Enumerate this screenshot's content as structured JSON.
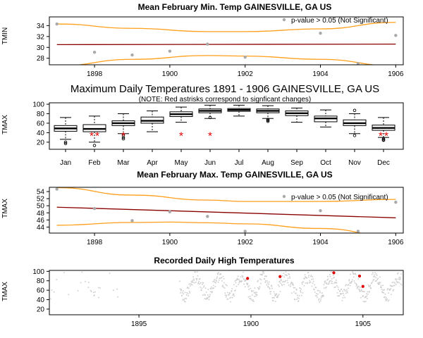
{
  "colors": {
    "trend": "#8b0000",
    "ci": "#ff9f1a",
    "points": "#a9a9a9",
    "scatter": "#cccccc",
    "highlight": "#e00000"
  },
  "chart_data": [
    {
      "id": "min-feb",
      "type": "scatter",
      "title": "Mean February Min. Temp GAINESVILLE, GA US",
      "xlabel": "",
      "ylabel": "TMIN",
      "xlim": [
        1896.8,
        1906.2
      ],
      "ylim": [
        26.8,
        35.6
      ],
      "xticks": [
        1898,
        1900,
        1902,
        1904,
        1906
      ],
      "yticks": [
        28,
        30,
        32,
        34
      ],
      "legend_text": "p-value > 0.05 (Not Significant)",
      "points": [
        [
          1897,
          34.3
        ],
        [
          1898,
          29.1
        ],
        [
          1899,
          28.6
        ],
        [
          1900,
          29.3
        ],
        [
          1901,
          30.6
        ],
        [
          1902,
          28.2
        ],
        [
          1904,
          32.6
        ],
        [
          1905,
          27.0
        ],
        [
          1906,
          32.2
        ]
      ],
      "trend": [
        [
          1897,
          30.5
        ],
        [
          1906,
          30.6
        ]
      ],
      "ci_upper": [
        [
          1897,
          34.3
        ],
        [
          1899,
          33.5
        ],
        [
          1901,
          32.9
        ],
        [
          1902,
          32.9
        ],
        [
          1904,
          33.4
        ],
        [
          1906,
          34.6
        ]
      ],
      "ci_lower": [
        [
          1897,
          26.6
        ],
        [
          1899,
          27.8
        ],
        [
          1901,
          28.5
        ],
        [
          1902,
          28.4
        ],
        [
          1904,
          27.8
        ],
        [
          1906,
          26.6
        ]
      ]
    },
    {
      "id": "monthly-box",
      "type": "box",
      "title": "Maximum Daily Temperatures 1891 - 1906 GAINESVILLE, GA US",
      "subtitle": "(NOTE: Red astrisks correspond to signficant changes)",
      "xlabel": "",
      "ylabel": "TMAX",
      "ylim": [
        5,
        103
      ],
      "yticks": [
        20,
        40,
        60,
        80,
        100
      ],
      "categories": [
        "Jan",
        "Feb",
        "Mar",
        "Apr",
        "May",
        "Jun",
        "Jul",
        "Aug",
        "Sep",
        "Oct",
        "Nov",
        "Dec"
      ],
      "boxes": [
        {
          "whisker_low": 26,
          "q1": 43,
          "median": 49,
          "q3": 55,
          "whisker_high": 72,
          "outliers": [
            20,
            17
          ]
        },
        {
          "whisker_low": 20,
          "q1": 42,
          "median": 48,
          "q3": 57,
          "whisker_high": 75,
          "outliers": [
            13
          ]
        },
        {
          "whisker_low": 38,
          "q1": 55,
          "median": 60,
          "q3": 65,
          "whisker_high": 80,
          "outliers": [
            35,
            30,
            27
          ]
        },
        {
          "whisker_low": 42,
          "q1": 60,
          "median": 65,
          "q3": 73,
          "whisker_high": 86,
          "outliers": []
        },
        {
          "whisker_low": 62,
          "q1": 74,
          "median": 79,
          "q3": 84,
          "whisker_high": 94,
          "outliers": []
        },
        {
          "whisker_low": 70,
          "q1": 82,
          "median": 86,
          "q3": 90,
          "whisker_high": 98,
          "outliers": [
            72
          ]
        },
        {
          "whisker_low": 75,
          "q1": 85,
          "median": 88,
          "q3": 91,
          "whisker_high": 98,
          "outliers": []
        },
        {
          "whisker_low": 70,
          "q1": 82,
          "median": 86,
          "q3": 90,
          "whisker_high": 97,
          "outliers": [
            68,
            66,
            64
          ]
        },
        {
          "whisker_low": 62,
          "q1": 76,
          "median": 81,
          "q3": 86,
          "whisker_high": 92,
          "outliers": []
        },
        {
          "whisker_low": 52,
          "q1": 63,
          "median": 70,
          "q3": 75,
          "whisker_high": 88,
          "outliers": []
        },
        {
          "whisker_low": 38,
          "q1": 55,
          "median": 60,
          "q3": 67,
          "whisker_high": 80,
          "outliers": [
            87,
            34
          ]
        },
        {
          "whisker_low": 30,
          "q1": 45,
          "median": 50,
          "q3": 56,
          "whisker_high": 72,
          "outliers": [
            27,
            25,
            24
          ]
        }
      ],
      "asterisks": [
        {
          "month": "Feb",
          "count": 2,
          "y": 37
        },
        {
          "month": "Mar",
          "count": 1,
          "y": 37
        },
        {
          "month": "May",
          "count": 1,
          "y": 37
        },
        {
          "month": "Jun",
          "count": 1,
          "y": 37
        },
        {
          "month": "Dec",
          "count": 2,
          "y": 37
        }
      ]
    },
    {
      "id": "max-feb",
      "type": "scatter",
      "title": "Mean February Max. Temp GAINESVILLE, GA US",
      "xlabel": "",
      "ylabel": "TMAX",
      "xlim": [
        1896.8,
        1906.2
      ],
      "ylim": [
        42.3,
        55.2
      ],
      "xticks": [
        1898,
        1900,
        1902,
        1904,
        1906
      ],
      "yticks": [
        44,
        46,
        48,
        50,
        52,
        54
      ],
      "legend_text": "p-value > 0.05 (Not Significant)",
      "points": [
        [
          1897,
          54.7
        ],
        [
          1898,
          49.2
        ],
        [
          1899,
          45.8
        ],
        [
          1900,
          48.3
        ],
        [
          1901,
          47.0
        ],
        [
          1902,
          42.8
        ],
        [
          1904,
          48.6
        ],
        [
          1905,
          42.8
        ],
        [
          1906,
          51.0
        ]
      ],
      "trend": [
        [
          1897,
          49.6
        ],
        [
          1906,
          46.6
        ]
      ],
      "ci_upper": [
        [
          1897,
          55.1
        ],
        [
          1899,
          53.0
        ],
        [
          1901,
          51.6
        ],
        [
          1902,
          51.2
        ],
        [
          1904,
          51.2
        ],
        [
          1906,
          51.8
        ]
      ],
      "ci_lower": [
        [
          1897,
          44.5
        ],
        [
          1899,
          45.3
        ],
        [
          1900,
          45.4
        ],
        [
          1901,
          45.2
        ],
        [
          1902,
          44.9
        ],
        [
          1904,
          43.6
        ],
        [
          1906,
          41.3
        ]
      ]
    },
    {
      "id": "daily-highs",
      "type": "scatter",
      "title": "Recorded Daily High Temperatures",
      "xlabel": "",
      "ylabel": "TMAX",
      "xlim": [
        1891.0,
        1906.8
      ],
      "ylim": [
        8,
        102
      ],
      "xticks": [
        1895,
        1900,
        1905
      ],
      "yticks": [
        20,
        40,
        60,
        80,
        100
      ],
      "segments": [
        {
          "start": 1891.0,
          "end": 1894.1,
          "density": 0.12
        },
        {
          "start": 1896.8,
          "end": 1906.7,
          "density": 1.0
        }
      ],
      "highlights": [
        [
          1899.85,
          85
        ],
        [
          1901.3,
          89
        ],
        [
          1903.7,
          97
        ],
        [
          1904.85,
          90
        ],
        [
          1905.0,
          68
        ]
      ]
    }
  ]
}
